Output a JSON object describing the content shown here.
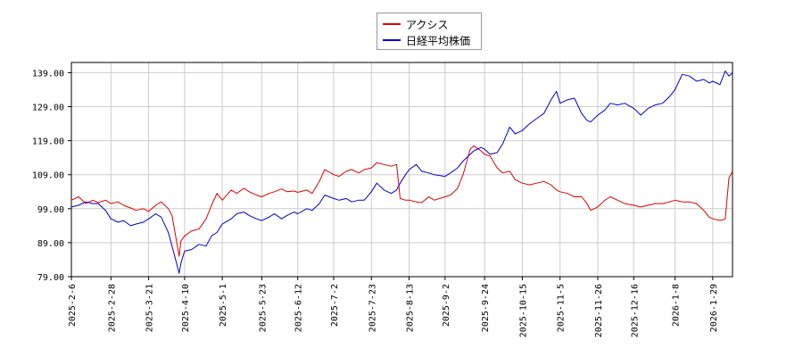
{
  "chart_data": {
    "type": "line",
    "title": "",
    "xlabel": "",
    "ylabel": "",
    "ylim": [
      79,
      142
    ],
    "grid": true,
    "legend_placement": "top-center",
    "y_ticks": [
      "139.00",
      "129.00",
      "119.00",
      "109.00",
      "99.00",
      "89.00",
      "79.00"
    ],
    "y_tick_values": [
      139,
      129,
      119,
      109,
      99,
      89,
      79
    ],
    "x_ticks": [
      "2025-2-6",
      "2025-2-28",
      "2025-3-21",
      "2025-4-10",
      "2025-5-1",
      "2025-5-23",
      "2025-6-12",
      "2025-7-2",
      "2025-7-23",
      "2025-8-13",
      "2025-9-2",
      "2025-9-24",
      "2025-10-15",
      "2025-11-5",
      "2025-11-26",
      "2025-12-16",
      "2026-1-8",
      "2026-1-29"
    ],
    "x_range": [
      "2025-2-6",
      "2026-2-9"
    ],
    "series": [
      {
        "name": "アクシス",
        "color": "#dd0000",
        "points": [
          [
            "2025-2-6",
            101.5
          ],
          [
            "2025-2-10",
            102.5
          ],
          [
            "2025-2-14",
            100.5
          ],
          [
            "2025-2-18",
            101.5
          ],
          [
            "2025-2-21",
            100.8
          ],
          [
            "2025-2-25",
            101.5
          ],
          [
            "2025-2-28",
            100.5
          ],
          [
            "2025-3-4",
            101.0
          ],
          [
            "2025-3-7",
            100.0
          ],
          [
            "2025-3-11",
            99.2
          ],
          [
            "2025-3-14",
            98.5
          ],
          [
            "2025-3-18",
            99.0
          ],
          [
            "2025-3-21",
            98.2
          ],
          [
            "2025-3-25",
            100.0
          ],
          [
            "2025-3-28",
            101.0
          ],
          [
            "2025-4-1",
            99.0
          ],
          [
            "2025-4-3",
            97.0
          ],
          [
            "2025-4-4",
            94.0
          ],
          [
            "2025-4-7",
            85.0
          ],
          [
            "2025-4-8",
            89.5
          ],
          [
            "2025-4-10",
            91.0
          ],
          [
            "2025-4-14",
            92.5
          ],
          [
            "2025-4-18",
            93.0
          ],
          [
            "2025-4-22",
            96.0
          ],
          [
            "2025-4-25",
            100.0
          ],
          [
            "2025-4-28",
            103.5
          ],
          [
            "2025-5-1",
            101.5
          ],
          [
            "2025-5-6",
            104.5
          ],
          [
            "2025-5-9",
            103.5
          ],
          [
            "2025-5-13",
            105.0
          ],
          [
            "2025-5-16",
            104.0
          ],
          [
            "2025-5-20",
            103.0
          ],
          [
            "2025-5-23",
            102.5
          ],
          [
            "2025-5-27",
            103.5
          ],
          [
            "2025-5-30",
            104.0
          ],
          [
            "2025-6-3",
            104.8
          ],
          [
            "2025-6-6",
            104.0
          ],
          [
            "2025-6-10",
            104.2
          ],
          [
            "2025-6-12",
            103.8
          ],
          [
            "2025-6-17",
            104.5
          ],
          [
            "2025-6-20",
            103.5
          ],
          [
            "2025-6-24",
            107.0
          ],
          [
            "2025-6-27",
            110.5
          ],
          [
            "2025-7-2",
            109.0
          ],
          [
            "2025-7-5",
            108.5
          ],
          [
            "2025-7-9",
            110.0
          ],
          [
            "2025-7-12",
            110.5
          ],
          [
            "2025-7-16",
            109.5
          ],
          [
            "2025-7-19",
            110.5
          ],
          [
            "2025-7-23",
            111.0
          ],
          [
            "2025-7-26",
            112.5
          ],
          [
            "2025-7-30",
            112.0
          ],
          [
            "2025-8-3",
            111.5
          ],
          [
            "2025-8-6",
            112.0
          ],
          [
            "2025-8-8",
            102.0
          ],
          [
            "2025-8-11",
            101.5
          ],
          [
            "2025-8-13",
            101.5
          ],
          [
            "2025-8-17",
            101.0
          ],
          [
            "2025-8-20",
            100.8
          ],
          [
            "2025-8-24",
            102.5
          ],
          [
            "2025-8-27",
            101.5
          ],
          [
            "2025-9-2",
            102.5
          ],
          [
            "2025-9-5",
            103.0
          ],
          [
            "2025-9-9",
            105.0
          ],
          [
            "2025-9-12",
            109.0
          ],
          [
            "2025-9-16",
            116.5
          ],
          [
            "2025-9-18",
            117.5
          ],
          [
            "2025-9-22",
            116.0
          ],
          [
            "2025-9-24",
            115.0
          ],
          [
            "2025-9-27",
            114.5
          ],
          [
            "2025-10-1",
            111.0
          ],
          [
            "2025-10-4",
            109.5
          ],
          [
            "2025-10-8",
            110.0
          ],
          [
            "2025-10-11",
            107.5
          ],
          [
            "2025-10-15",
            106.5
          ],
          [
            "2025-10-19",
            106.0
          ],
          [
            "2025-10-23",
            106.5
          ],
          [
            "2025-10-27",
            107.0
          ],
          [
            "2025-10-31",
            106.0
          ],
          [
            "2025-11-3",
            104.5
          ],
          [
            "2025-11-5",
            104.0
          ],
          [
            "2025-11-9",
            103.5
          ],
          [
            "2025-11-13",
            102.5
          ],
          [
            "2025-11-17",
            102.5
          ],
          [
            "2025-11-20",
            100.5
          ],
          [
            "2025-11-22",
            98.5
          ],
          [
            "2025-11-26",
            99.5
          ],
          [
            "2025-11-30",
            101.5
          ],
          [
            "2025-12-3",
            102.5
          ],
          [
            "2025-12-7",
            101.5
          ],
          [
            "2025-12-11",
            100.5
          ],
          [
            "2025-12-16",
            100.0
          ],
          [
            "2025-12-20",
            99.5
          ],
          [
            "2025-12-24",
            100.0
          ],
          [
            "2025-12-28",
            100.5
          ],
          [
            "2026-1-1",
            100.5
          ],
          [
            "2026-1-5",
            101.0
          ],
          [
            "2026-1-8",
            101.5
          ],
          [
            "2026-1-12",
            101.0
          ],
          [
            "2026-1-16",
            101.0
          ],
          [
            "2026-1-20",
            100.5
          ],
          [
            "2026-1-24",
            98.5
          ],
          [
            "2026-1-27",
            96.5
          ],
          [
            "2026-1-29",
            96.0
          ],
          [
            "2026-2-2",
            95.5
          ],
          [
            "2026-2-5",
            96.0
          ],
          [
            "2026-2-7",
            108.0
          ],
          [
            "2026-2-9",
            110.0
          ]
        ]
      },
      {
        "name": "日経平均株価",
        "color": "#0000cc",
        "points": [
          [
            "2025-2-6",
            99.5
          ],
          [
            "2025-2-10",
            100.0
          ],
          [
            "2025-2-14",
            101.0
          ],
          [
            "2025-2-18",
            100.5
          ],
          [
            "2025-2-21",
            100.5
          ],
          [
            "2025-2-25",
            98.5
          ],
          [
            "2025-2-28",
            96.0
          ],
          [
            "2025-3-4",
            95.0
          ],
          [
            "2025-3-7",
            95.5
          ],
          [
            "2025-3-11",
            94.0
          ],
          [
            "2025-3-14",
            94.5
          ],
          [
            "2025-3-18",
            95.0
          ],
          [
            "2025-3-21",
            96.0
          ],
          [
            "2025-3-25",
            97.5
          ],
          [
            "2025-3-28",
            96.5
          ],
          [
            "2025-4-1",
            92.0
          ],
          [
            "2025-4-3",
            88.0
          ],
          [
            "2025-4-4",
            86.0
          ],
          [
            "2025-4-7",
            80.0
          ],
          [
            "2025-4-8",
            83.0
          ],
          [
            "2025-4-10",
            86.5
          ],
          [
            "2025-4-14",
            87.0
          ],
          [
            "2025-4-18",
            88.5
          ],
          [
            "2025-4-22",
            88.0
          ],
          [
            "2025-4-25",
            91.0
          ],
          [
            "2025-4-28",
            92.0
          ],
          [
            "2025-5-1",
            94.5
          ],
          [
            "2025-5-6",
            96.0
          ],
          [
            "2025-5-9",
            97.5
          ],
          [
            "2025-5-13",
            98.0
          ],
          [
            "2025-5-16",
            97.0
          ],
          [
            "2025-5-20",
            96.0
          ],
          [
            "2025-5-23",
            95.5
          ],
          [
            "2025-5-27",
            96.5
          ],
          [
            "2025-5-30",
            97.5
          ],
          [
            "2025-6-3",
            96.0
          ],
          [
            "2025-6-6",
            97.0
          ],
          [
            "2025-6-10",
            98.0
          ],
          [
            "2025-6-12",
            97.5
          ],
          [
            "2025-6-17",
            99.0
          ],
          [
            "2025-6-20",
            98.5
          ],
          [
            "2025-6-24",
            100.5
          ],
          [
            "2025-6-27",
            103.0
          ],
          [
            "2025-7-2",
            102.0
          ],
          [
            "2025-7-5",
            101.5
          ],
          [
            "2025-7-9",
            102.0
          ],
          [
            "2025-7-12",
            101.0
          ],
          [
            "2025-7-16",
            101.5
          ],
          [
            "2025-7-19",
            101.5
          ],
          [
            "2025-7-23",
            104.0
          ],
          [
            "2025-7-26",
            106.5
          ],
          [
            "2025-7-30",
            104.5
          ],
          [
            "2025-8-3",
            103.5
          ],
          [
            "2025-8-6",
            104.5
          ],
          [
            "2025-8-8",
            106.5
          ],
          [
            "2025-8-11",
            109.0
          ],
          [
            "2025-8-13",
            110.5
          ],
          [
            "2025-8-17",
            112.0
          ],
          [
            "2025-8-20",
            110.0
          ],
          [
            "2025-8-24",
            109.5
          ],
          [
            "2025-8-27",
            109.0
          ],
          [
            "2025-9-2",
            108.5
          ],
          [
            "2025-9-5",
            109.5
          ],
          [
            "2025-9-9",
            111.0
          ],
          [
            "2025-9-12",
            113.0
          ],
          [
            "2025-9-16",
            115.0
          ],
          [
            "2025-9-18",
            116.0
          ],
          [
            "2025-9-22",
            117.0
          ],
          [
            "2025-9-24",
            116.5
          ],
          [
            "2025-9-27",
            115.0
          ],
          [
            "2025-10-1",
            115.5
          ],
          [
            "2025-10-4",
            118.0
          ],
          [
            "2025-10-8",
            123.0
          ],
          [
            "2025-10-11",
            121.0
          ],
          [
            "2025-10-15",
            122.0
          ],
          [
            "2025-10-19",
            124.0
          ],
          [
            "2025-10-23",
            125.5
          ],
          [
            "2025-10-27",
            127.0
          ],
          [
            "2025-10-31",
            131.0
          ],
          [
            "2025-11-3",
            133.5
          ],
          [
            "2025-11-5",
            130.0
          ],
          [
            "2025-11-9",
            131.0
          ],
          [
            "2025-11-13",
            131.5
          ],
          [
            "2025-11-17",
            127.0
          ],
          [
            "2025-11-20",
            125.0
          ],
          [
            "2025-11-22",
            124.5
          ],
          [
            "2025-11-26",
            126.5
          ],
          [
            "2025-11-30",
            128.0
          ],
          [
            "2025-12-3",
            130.0
          ],
          [
            "2025-12-7",
            129.5
          ],
          [
            "2025-12-11",
            130.0
          ],
          [
            "2025-12-16",
            128.5
          ],
          [
            "2025-12-20",
            126.5
          ],
          [
            "2025-12-24",
            128.5
          ],
          [
            "2025-12-28",
            129.5
          ],
          [
            "2026-1-1",
            130.0
          ],
          [
            "2026-1-5",
            132.0
          ],
          [
            "2026-1-8",
            134.0
          ],
          [
            "2026-1-12",
            138.5
          ],
          [
            "2026-1-16",
            138.0
          ],
          [
            "2026-1-20",
            136.5
          ],
          [
            "2026-1-24",
            137.0
          ],
          [
            "2026-1-27",
            136.0
          ],
          [
            "2026-1-29",
            136.5
          ],
          [
            "2026-2-2",
            135.5
          ],
          [
            "2026-2-5",
            139.5
          ],
          [
            "2026-2-7",
            138.0
          ],
          [
            "2026-2-9",
            139.0
          ]
        ]
      }
    ]
  }
}
